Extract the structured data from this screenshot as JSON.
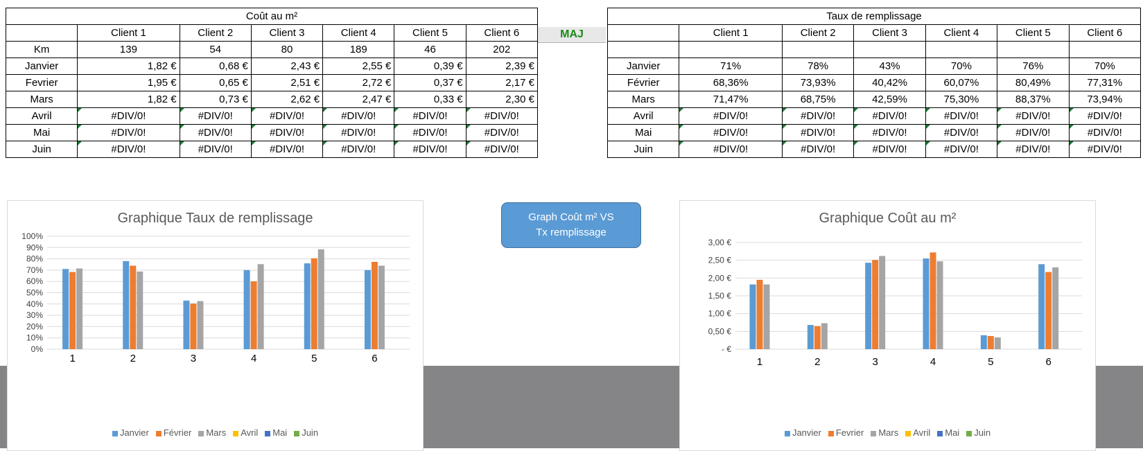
{
  "cost_table": {
    "title": "Coût au m²",
    "clients": [
      "Client 1",
      "Client 2",
      "Client 3",
      "Client 4",
      "Client 5",
      "Client 6"
    ],
    "km_label": "Km",
    "km": [
      "139",
      "54",
      "80",
      "189",
      "46",
      "202"
    ],
    "rows": [
      {
        "month": "Janvier",
        "values": [
          "1,82 €",
          "0,68 €",
          "2,43 €",
          "2,55 €",
          "0,39 €",
          "2,39 €"
        ]
      },
      {
        "month": "Fevrier",
        "values": [
          "1,95 €",
          "0,65 €",
          "2,51 €",
          "2,72 €",
          "0,37 €",
          "2,17 €"
        ]
      },
      {
        "month": "Mars",
        "values": [
          "1,82 €",
          "0,73 €",
          "2,62 €",
          "2,47 €",
          "0,33 €",
          "2,30 €"
        ]
      },
      {
        "month": "Avril",
        "values": [
          "#DIV/0!",
          "#DIV/0!",
          "#DIV/0!",
          "#DIV/0!",
          "#DIV/0!",
          "#DIV/0!"
        ]
      },
      {
        "month": "Mai",
        "values": [
          "#DIV/0!",
          "#DIV/0!",
          "#DIV/0!",
          "#DIV/0!",
          "#DIV/0!",
          "#DIV/0!"
        ]
      },
      {
        "month": "Juin",
        "values": [
          "#DIV/0!",
          "#DIV/0!",
          "#DIV/0!",
          "#DIV/0!",
          "#DIV/0!",
          "#DIV/0!"
        ]
      }
    ]
  },
  "maj_label": "MAJ",
  "fill_table": {
    "title": "Taux de remplissage",
    "clients": [
      "Client 1",
      "Client 2",
      "Client 3",
      "Client 4",
      "Client 5",
      "Client 6"
    ],
    "rows": [
      {
        "month": "Janvier",
        "values": [
          "71%",
          "78%",
          "43%",
          "70%",
          "76%",
          "70%"
        ]
      },
      {
        "month": "Février",
        "values": [
          "68,36%",
          "73,93%",
          "40,42%",
          "60,07%",
          "80,49%",
          "77,31%"
        ]
      },
      {
        "month": "Mars",
        "values": [
          "71,47%",
          "68,75%",
          "42,59%",
          "75,30%",
          "88,37%",
          "73,94%"
        ]
      },
      {
        "month": "Avril",
        "values": [
          "#DIV/0!",
          "#DIV/0!",
          "#DIV/0!",
          "#DIV/0!",
          "#DIV/0!",
          "#DIV/0!"
        ]
      },
      {
        "month": "Mai",
        "values": [
          "#DIV/0!",
          "#DIV/0!",
          "#DIV/0!",
          "#DIV/0!",
          "#DIV/0!",
          "#DIV/0!"
        ]
      },
      {
        "month": "Juin",
        "values": [
          "#DIV/0!",
          "#DIV/0!",
          "#DIV/0!",
          "#DIV/0!",
          "#DIV/0!",
          "#DIV/0!"
        ]
      }
    ]
  },
  "action_button": {
    "label": "Graph Coût m² VS\nTx remplissage"
  },
  "colors": {
    "janvier": "#5b9bd5",
    "fevrier": "#ed7d31",
    "mars": "#a5a5a5",
    "avril": "#ffc000",
    "mai": "#4472c4",
    "juin": "#70ad47",
    "grid": "#d9d9d9",
    "text": "#595959",
    "band": "#858487"
  },
  "chart_data": [
    {
      "type": "bar",
      "title": "Graphique Taux de remplissage",
      "categories": [
        "1",
        "2",
        "3",
        "4",
        "5",
        "6"
      ],
      "ylim": [
        0,
        100
      ],
      "ytick_labels": [
        "0%",
        "10%",
        "20%",
        "30%",
        "40%",
        "50%",
        "60%",
        "70%",
        "80%",
        "90%",
        "100%"
      ],
      "grid": true,
      "legend_position": "bottom",
      "legend": [
        "Janvier",
        "Février",
        "Mars",
        "Avril",
        "Mai",
        "Juin"
      ],
      "series": [
        {
          "name": "Janvier",
          "values": [
            71,
            78,
            43,
            70,
            76,
            70
          ]
        },
        {
          "name": "Février",
          "values": [
            68.36,
            73.93,
            40.42,
            60.07,
            80.49,
            77.31
          ]
        },
        {
          "name": "Mars",
          "values": [
            71.47,
            68.75,
            42.59,
            75.3,
            88.37,
            73.94
          ]
        }
      ]
    },
    {
      "type": "bar",
      "title": "Graphique Coût au m²",
      "categories": [
        "1",
        "2",
        "3",
        "4",
        "5",
        "6"
      ],
      "ylim": [
        0,
        3
      ],
      "ytick_labels": [
        "-   €",
        "0,50 €",
        "1,00 €",
        "1,50 €",
        "2,00 €",
        "2,50 €",
        "3,00 €"
      ],
      "grid": true,
      "legend_position": "bottom",
      "legend": [
        "Janvier",
        "Fevrier",
        "Mars",
        "Avril",
        "Mai",
        "Juin"
      ],
      "series": [
        {
          "name": "Janvier",
          "values": [
            1.82,
            0.68,
            2.43,
            2.55,
            0.39,
            2.39
          ]
        },
        {
          "name": "Fevrier",
          "values": [
            1.95,
            0.65,
            2.51,
            2.72,
            0.37,
            2.17
          ]
        },
        {
          "name": "Mars",
          "values": [
            1.82,
            0.73,
            2.62,
            2.47,
            0.33,
            2.3
          ]
        }
      ]
    }
  ]
}
